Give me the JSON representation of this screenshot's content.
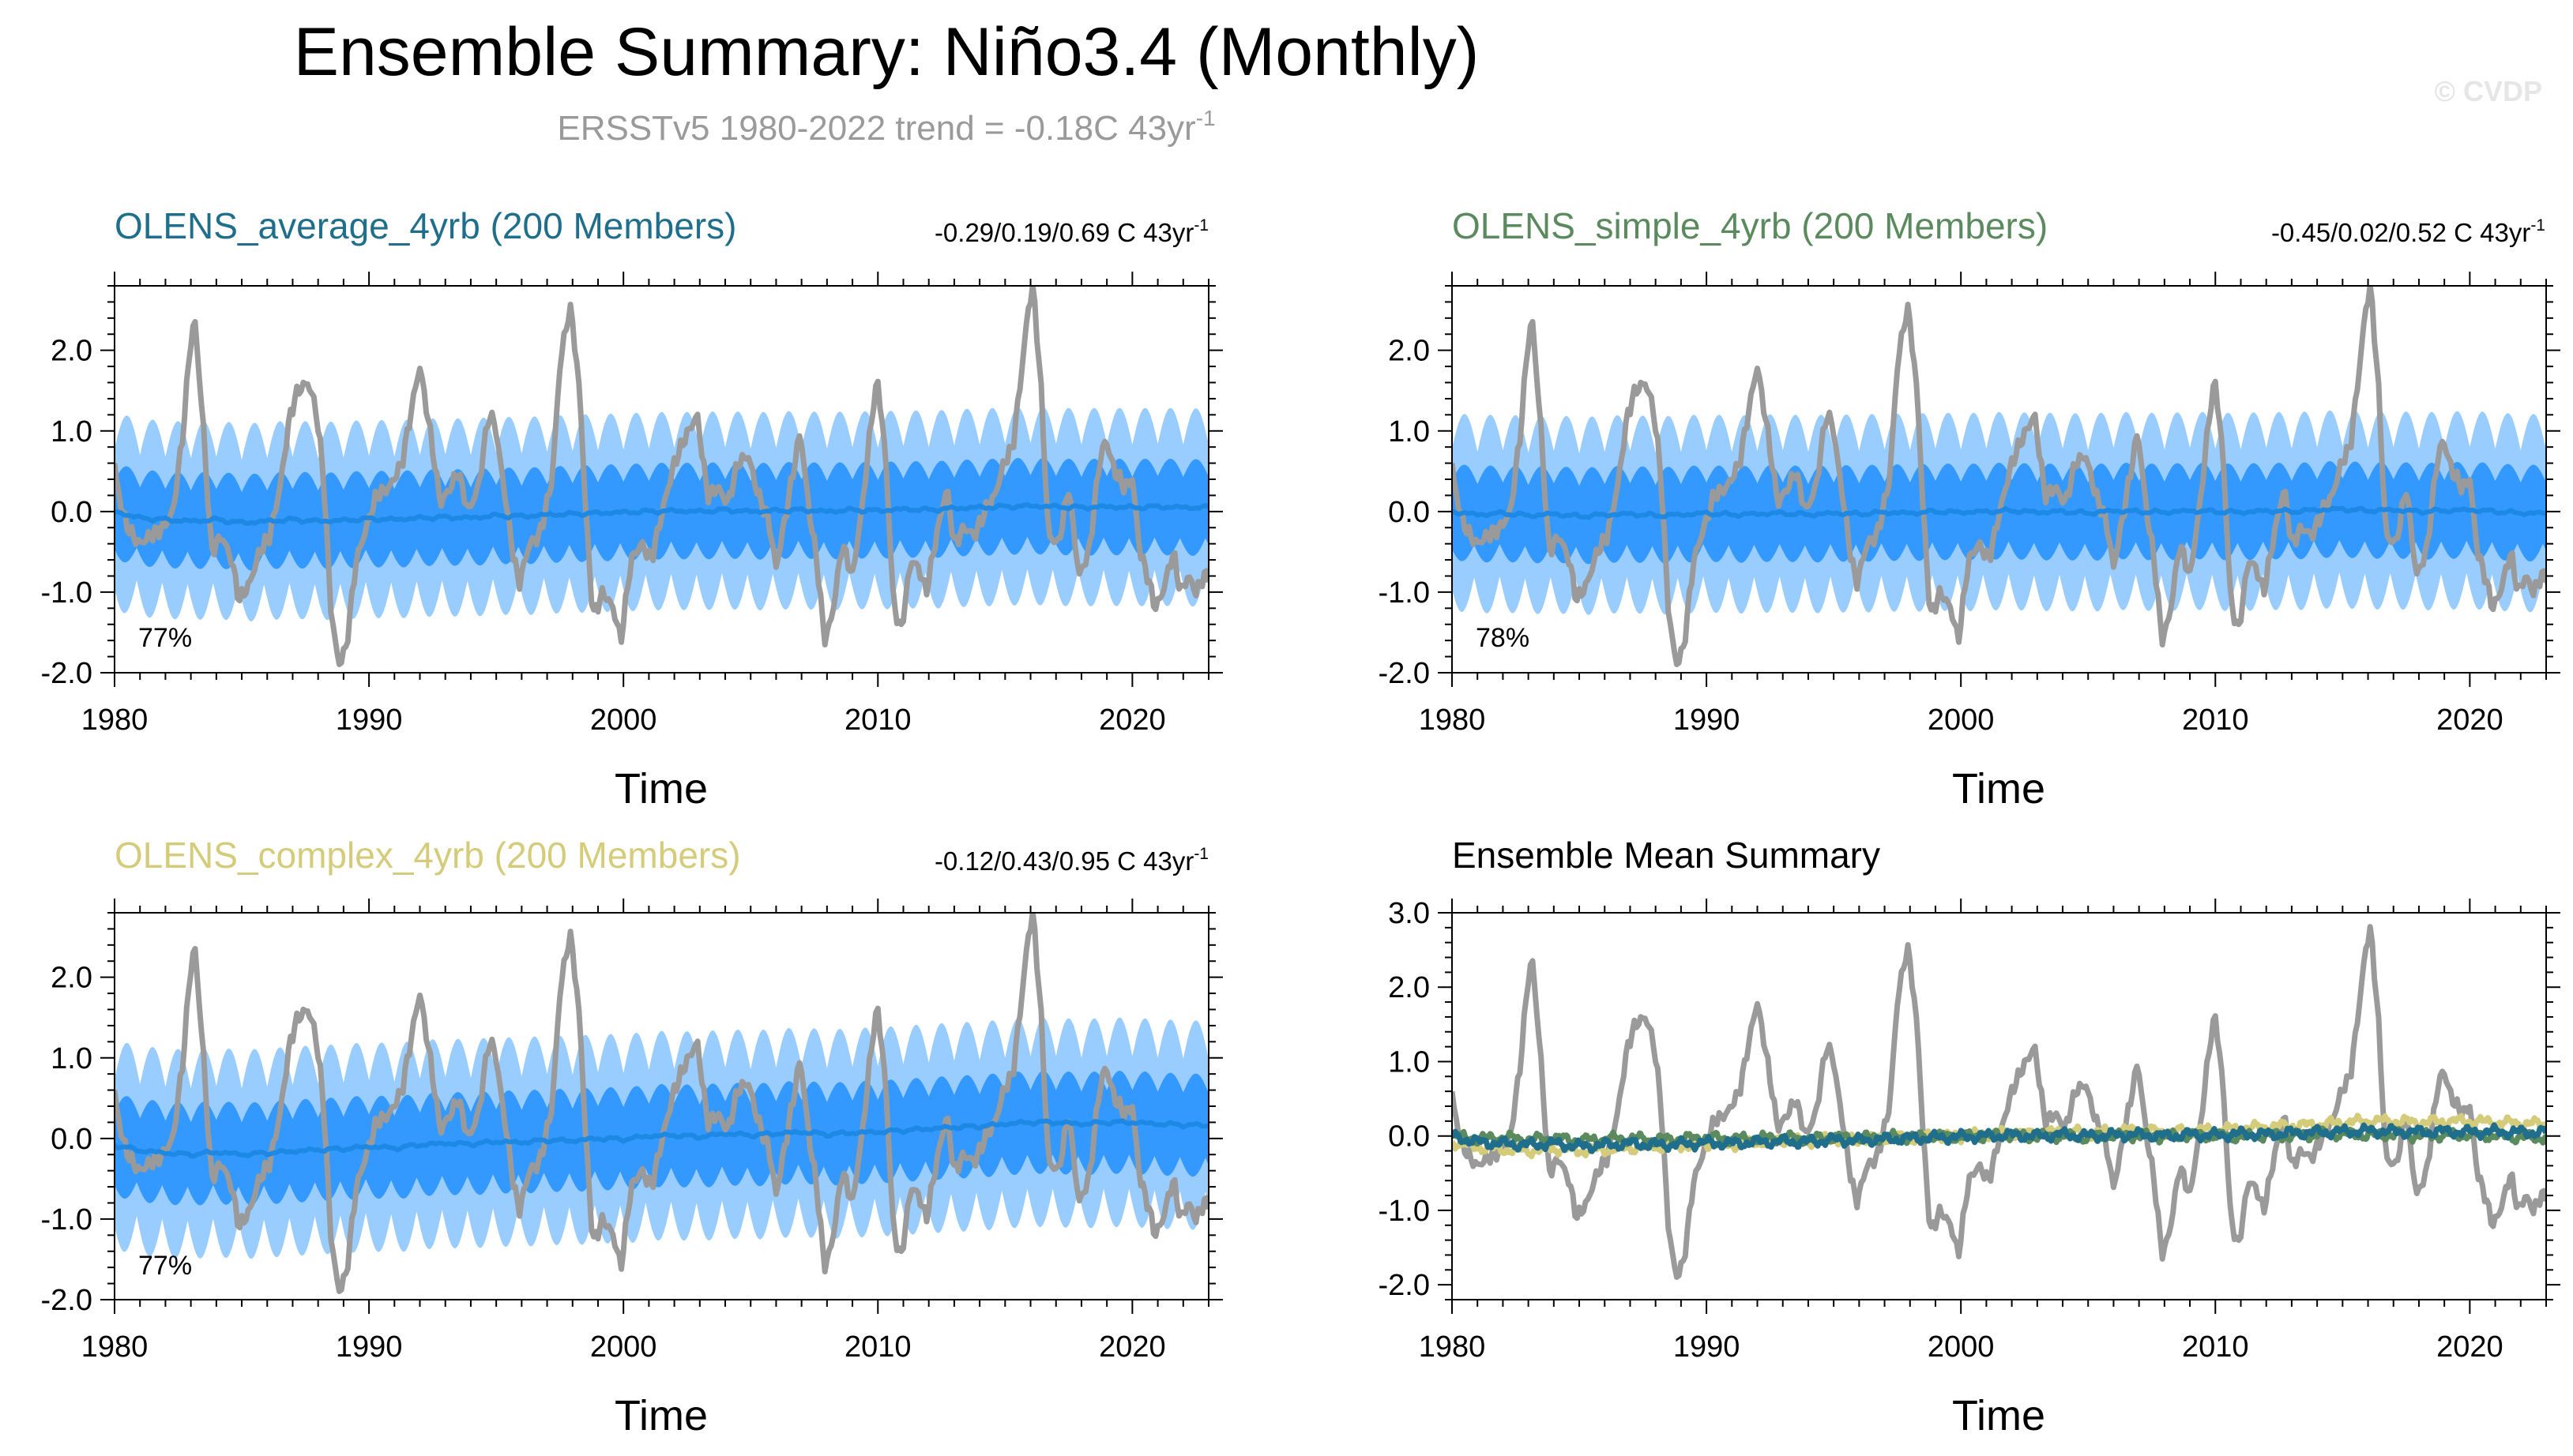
{
  "figure": {
    "title": "Ensemble Summary: Niño3.4 (Monthly)",
    "subtitle_prefix": "ERSSTv5 1980-2022 trend = -0.18C 43yr",
    "subtitle_sup": "-1",
    "watermark": "© CVDP"
  },
  "colors": {
    "band_outer": "#99ccff",
    "band_inner": "#3399ff",
    "ens_mean": "#1e88e5",
    "obs": "#9a9a9a",
    "title_average": "#1f6e8c",
    "title_simple": "#5b8a5e",
    "title_complex": "#d4cc7a",
    "subtitle": "#9a9a9a",
    "watermark": "#e6e6e6"
  },
  "chart_data": [
    {
      "type": "line",
      "name": "panel-average",
      "title": "OLENS_average_4yrb (200 Members)",
      "title_color": "#1f6e8c",
      "trend_text": "-0.29/0.19/0.69 C 43yr",
      "trend_sup": "-1",
      "percent": "77%",
      "xlabel": "Time",
      "ylabel": "",
      "xlim": [
        1980,
        2023
      ],
      "ylim": [
        -2.0,
        2.8
      ],
      "xticks": [
        1980,
        1990,
        2000,
        2010,
        2020
      ],
      "yticks": [
        -2.0,
        -1.0,
        0.0,
        1.0,
        2.0
      ],
      "ytick_labels": [
        "-2.0",
        "-1.0",
        "0.0",
        "1.0",
        "2.0"
      ],
      "series": [
        {
          "name": "ensemble spread 10-90%",
          "kind": "band",
          "trend": 0.0,
          "inner_half": 0.38,
          "inner_amp": 0.22,
          "outer_half": 0.78,
          "outer_amp": 0.45
        },
        {
          "name": "ensemble mean",
          "kind": "line",
          "x": [
            1980,
            1981,
            1982,
            1983,
            1984,
            1985,
            1986,
            1987,
            1988,
            1989,
            1990,
            1991,
            1992,
            1993,
            1994,
            1995,
            1996,
            1997,
            1998,
            1999,
            2000,
            2001,
            2002,
            2003,
            2004,
            2005,
            2006,
            2007,
            2008,
            2009,
            2010,
            2011,
            2012,
            2013,
            2014,
            2015,
            2016,
            2017,
            2018,
            2019,
            2020,
            2021,
            2022,
            2023
          ],
          "values": [
            0.0,
            -0.08,
            -0.1,
            -0.12,
            -0.1,
            -0.14,
            -0.12,
            -0.1,
            -0.12,
            -0.11,
            -0.09,
            -0.1,
            -0.08,
            -0.07,
            -0.08,
            -0.05,
            -0.06,
            -0.04,
            -0.03,
            -0.02,
            -0.01,
            0.0,
            0.01,
            0.0,
            0.02,
            0.0,
            0.01,
            0.02,
            0.0,
            0.02,
            0.01,
            0.03,
            0.02,
            0.04,
            0.05,
            0.06,
            0.07,
            0.06,
            0.05,
            0.06,
            0.05,
            0.06,
            0.05,
            0.05
          ]
        },
        {
          "name": "ERSSTv5 observed",
          "kind": "obs"
        }
      ]
    },
    {
      "type": "line",
      "name": "panel-simple",
      "title": "OLENS_simple_4yrb (200 Members)",
      "title_color": "#5b8a5e",
      "trend_text": "-0.45/0.02/0.52 C 43yr",
      "trend_sup": "-1",
      "percent": "78%",
      "xlabel": "Time",
      "ylabel": "",
      "xlim": [
        1980,
        2023
      ],
      "ylim": [
        -2.0,
        2.8
      ],
      "xticks": [
        1980,
        1990,
        2000,
        2010,
        2020
      ],
      "yticks": [
        -2.0,
        -1.0,
        0.0,
        1.0,
        2.0
      ],
      "ytick_labels": [
        "-2.0",
        "-1.0",
        "0.0",
        "1.0",
        "2.0"
      ],
      "series": [
        {
          "name": "ensemble spread 10-90%",
          "kind": "band",
          "trend": 0.0,
          "inner_half": 0.38,
          "inner_amp": 0.22,
          "outer_half": 0.78,
          "outer_amp": 0.45
        },
        {
          "name": "ensemble mean",
          "kind": "line",
          "x": [
            1980,
            1981,
            1982,
            1983,
            1984,
            1985,
            1986,
            1987,
            1988,
            1989,
            1990,
            1991,
            1992,
            1993,
            1994,
            1995,
            1996,
            1997,
            1998,
            1999,
            2000,
            2001,
            2002,
            2003,
            2004,
            2005,
            2006,
            2007,
            2008,
            2009,
            2010,
            2011,
            2012,
            2013,
            2014,
            2015,
            2016,
            2017,
            2018,
            2019,
            2020,
            2021,
            2022,
            2023
          ],
          "values": [
            0.0,
            -0.04,
            -0.02,
            -0.05,
            -0.03,
            -0.06,
            -0.04,
            -0.03,
            -0.05,
            -0.04,
            -0.02,
            -0.04,
            -0.03,
            -0.02,
            -0.04,
            -0.02,
            -0.03,
            -0.01,
            -0.02,
            0.0,
            -0.01,
            0.0,
            0.01,
            -0.01,
            0.0,
            -0.02,
            0.01,
            0.0,
            -0.01,
            0.01,
            0.0,
            -0.01,
            0.01,
            0.0,
            0.02,
            0.03,
            0.01,
            0.02,
            0.0,
            0.01,
            0.02,
            0.0,
            -0.02,
            -0.02
          ]
        },
        {
          "name": "ERSSTv5 observed",
          "kind": "obs"
        }
      ]
    },
    {
      "type": "line",
      "name": "panel-complex",
      "title": "OLENS_complex_4yrb (200 Members)",
      "title_color": "#d4cc7a",
      "trend_text": "-0.12/0.43/0.95 C 43yr",
      "trend_sup": "-1",
      "percent": "77%",
      "xlabel": "Time",
      "ylabel": "",
      "xlim": [
        1980,
        2023
      ],
      "ylim": [
        -2.0,
        2.8
      ],
      "xticks": [
        1980,
        1990,
        2000,
        2010,
        2020
      ],
      "yticks": [
        -2.0,
        -1.0,
        0.0,
        1.0,
        2.0
      ],
      "ytick_labels": [
        "-2.0",
        "-1.0",
        "0.0",
        "1.0",
        "2.0"
      ],
      "series": [
        {
          "name": "ensemble spread 10-90%",
          "kind": "band",
          "trend": 0.0,
          "inner_half": 0.4,
          "inner_amp": 0.24,
          "outer_half": 0.82,
          "outer_amp": 0.48
        },
        {
          "name": "ensemble mean",
          "kind": "line",
          "x": [
            1980,
            1981,
            1982,
            1983,
            1984,
            1985,
            1986,
            1987,
            1988,
            1989,
            1990,
            1991,
            1992,
            1993,
            1994,
            1995,
            1996,
            1997,
            1998,
            1999,
            2000,
            2001,
            2002,
            2003,
            2004,
            2005,
            2006,
            2007,
            2008,
            2009,
            2010,
            2011,
            2012,
            2013,
            2014,
            2015,
            2016,
            2017,
            2018,
            2019,
            2020,
            2021,
            2022,
            2023
          ],
          "values": [
            -0.08,
            -0.15,
            -0.18,
            -0.2,
            -0.17,
            -0.2,
            -0.18,
            -0.16,
            -0.14,
            -0.13,
            -0.1,
            -0.12,
            -0.08,
            -0.06,
            -0.07,
            -0.04,
            -0.05,
            -0.02,
            -0.03,
            0.0,
            -0.01,
            0.03,
            0.04,
            0.02,
            0.06,
            0.04,
            0.06,
            0.08,
            0.05,
            0.07,
            0.08,
            0.1,
            0.12,
            0.14,
            0.15,
            0.18,
            0.2,
            0.2,
            0.18,
            0.2,
            0.2,
            0.18,
            0.17,
            0.16
          ]
        },
        {
          "name": "ERSSTv5 observed",
          "kind": "obs"
        }
      ]
    },
    {
      "type": "line",
      "name": "panel-ensemble-mean-summary",
      "title": "Ensemble Mean Summary",
      "title_color": "#000000",
      "xlabel": "Time",
      "ylabel": "",
      "xlim": [
        1980,
        2023
      ],
      "ylim": [
        -2.2,
        3.0
      ],
      "xticks": [
        1980,
        1990,
        2000,
        2010,
        2020
      ],
      "yticks": [
        -2.0,
        -1.0,
        0.0,
        1.0,
        2.0,
        3.0
      ],
      "ytick_labels": [
        "-2.0",
        "-1.0",
        "0.0",
        "1.0",
        "2.0",
        "3.0"
      ],
      "series": [
        {
          "name": "ERSSTv5 observed",
          "kind": "obs"
        },
        {
          "name": "OLENS_complex_4yrb ensemble mean",
          "kind": "line",
          "color": "#d4cc7a",
          "x": [
            1980,
            1981,
            1982,
            1983,
            1984,
            1985,
            1986,
            1987,
            1988,
            1989,
            1990,
            1991,
            1992,
            1993,
            1994,
            1995,
            1996,
            1997,
            1998,
            1999,
            2000,
            2001,
            2002,
            2003,
            2004,
            2005,
            2006,
            2007,
            2008,
            2009,
            2010,
            2011,
            2012,
            2013,
            2014,
            2015,
            2016,
            2017,
            2018,
            2019,
            2020,
            2021,
            2022,
            2023
          ],
          "values": [
            -0.08,
            -0.15,
            -0.18,
            -0.2,
            -0.17,
            -0.2,
            -0.18,
            -0.16,
            -0.14,
            -0.13,
            -0.1,
            -0.12,
            -0.08,
            -0.06,
            -0.07,
            -0.04,
            -0.05,
            -0.02,
            -0.03,
            0.0,
            -0.01,
            0.03,
            0.04,
            0.02,
            0.06,
            0.04,
            0.06,
            0.08,
            0.05,
            0.07,
            0.08,
            0.1,
            0.12,
            0.14,
            0.15,
            0.18,
            0.2,
            0.2,
            0.18,
            0.2,
            0.2,
            0.18,
            0.17,
            0.16
          ]
        },
        {
          "name": "OLENS_simple_4yrb ensemble mean",
          "kind": "line",
          "color": "#5b8a5e",
          "x": [
            1980,
            1981,
            1982,
            1983,
            1984,
            1985,
            1986,
            1987,
            1988,
            1989,
            1990,
            1991,
            1992,
            1993,
            1994,
            1995,
            1996,
            1997,
            1998,
            1999,
            2000,
            2001,
            2002,
            2003,
            2004,
            2005,
            2006,
            2007,
            2008,
            2009,
            2010,
            2011,
            2012,
            2013,
            2014,
            2015,
            2016,
            2017,
            2018,
            2019,
            2020,
            2021,
            2022,
            2023
          ],
          "values": [
            0.0,
            -0.04,
            -0.02,
            -0.05,
            -0.03,
            -0.06,
            -0.04,
            -0.03,
            -0.05,
            -0.04,
            -0.02,
            -0.04,
            -0.03,
            -0.02,
            -0.04,
            -0.02,
            -0.03,
            -0.01,
            -0.02,
            0.0,
            -0.01,
            0.0,
            0.01,
            -0.01,
            0.0,
            -0.02,
            0.01,
            0.0,
            -0.01,
            0.01,
            0.0,
            -0.01,
            0.01,
            0.0,
            0.02,
            0.03,
            0.01,
            0.02,
            0.0,
            0.01,
            0.02,
            0.0,
            -0.02,
            -0.02
          ]
        },
        {
          "name": "OLENS_average_4yrb ensemble mean",
          "kind": "line",
          "color": "#1f6e8c",
          "x": [
            1980,
            1981,
            1982,
            1983,
            1984,
            1985,
            1986,
            1987,
            1988,
            1989,
            1990,
            1991,
            1992,
            1993,
            1994,
            1995,
            1996,
            1997,
            1998,
            1999,
            2000,
            2001,
            2002,
            2003,
            2004,
            2005,
            2006,
            2007,
            2008,
            2009,
            2010,
            2011,
            2012,
            2013,
            2014,
            2015,
            2016,
            2017,
            2018,
            2019,
            2020,
            2021,
            2022,
            2023
          ],
          "values": [
            0.0,
            -0.08,
            -0.1,
            -0.12,
            -0.1,
            -0.14,
            -0.12,
            -0.1,
            -0.12,
            -0.11,
            -0.09,
            -0.1,
            -0.08,
            -0.07,
            -0.08,
            -0.05,
            -0.06,
            -0.04,
            -0.03,
            -0.02,
            -0.01,
            0.0,
            0.01,
            0.0,
            0.02,
            0.0,
            0.01,
            0.02,
            0.0,
            0.02,
            0.01,
            0.03,
            0.02,
            0.04,
            0.05,
            0.06,
            0.07,
            0.06,
            0.05,
            0.06,
            0.05,
            0.06,
            0.05,
            0.05
          ]
        }
      ]
    }
  ],
  "obs_series": {
    "name": "ERSSTv5 Niño3.4 monthly anomaly",
    "x": [
      1980.0,
      1980.1,
      1980.4,
      1980.7,
      1981.0,
      1981.4,
      1981.9,
      1982.3,
      1982.7,
      1982.95,
      1983.15,
      1983.5,
      1983.8,
      1984.2,
      1984.6,
      1984.9,
      1985.3,
      1985.7,
      1986.1,
      1986.5,
      1986.9,
      1987.2,
      1987.6,
      1987.9,
      1988.2,
      1988.5,
      1988.8,
      1989.1,
      1989.5,
      1989.9,
      1990.3,
      1990.8,
      1991.3,
      1991.8,
      1992.0,
      1992.4,
      1992.8,
      1993.2,
      1993.5,
      1993.9,
      1994.3,
      1994.7,
      1994.95,
      1995.3,
      1995.7,
      1995.9,
      1996.3,
      1996.7,
      1997.2,
      1997.5,
      1997.8,
      1997.95,
      1998.3,
      1998.5,
      1998.8,
      1999.2,
      1999.6,
      1999.9,
      2000.3,
      2000.7,
      2001.1,
      2001.6,
      2002.0,
      2002.4,
      2002.9,
      2003.3,
      2003.7,
      2004.1,
      2004.5,
      2004.9,
      2005.3,
      2005.7,
      2006.0,
      2006.4,
      2006.95,
      2007.3,
      2007.6,
      2007.9,
      2008.2,
      2008.6,
      2009.0,
      2009.4,
      2009.8,
      2010.0,
      2010.3,
      2010.6,
      2010.9,
      2011.3,
      2011.6,
      2011.9,
      2012.3,
      2012.7,
      2013.0,
      2013.4,
      2013.8,
      2014.2,
      2014.6,
      2014.95,
      2015.3,
      2015.6,
      2015.9,
      2016.1,
      2016.4,
      2016.7,
      2017.1,
      2017.5,
      2017.9,
      2018.3,
      2018.7,
      2018.95,
      2019.3,
      2019.7,
      2020.0,
      2020.3,
      2020.6,
      2020.9,
      2021.2,
      2021.6,
      2021.9,
      2022.2,
      2022.5,
      2022.8,
      2022.95
    ],
    "values": [
      0.6,
      0.3,
      -0.1,
      -0.3,
      -0.4,
      -0.3,
      -0.2,
      0.0,
      1.0,
      2.0,
      2.4,
      1.0,
      -0.5,
      -0.3,
      -0.6,
      -1.1,
      -0.9,
      -0.5,
      -0.3,
      0.3,
      1.2,
      1.5,
      1.6,
      1.3,
      0.5,
      -1.2,
      -1.9,
      -1.7,
      -0.6,
      -0.2,
      0.2,
      0.3,
      0.6,
      1.5,
      1.8,
      1.0,
      0.1,
      0.3,
      0.5,
      0.0,
      0.3,
      1.2,
      1.1,
      0.3,
      -0.6,
      -0.9,
      -0.4,
      -0.3,
      0.4,
      1.8,
      2.4,
      2.5,
      1.4,
      0.1,
      -1.3,
      -1.0,
      -1.2,
      -1.6,
      -0.6,
      -0.4,
      -0.6,
      0.1,
      0.6,
      0.9,
      1.2,
      0.2,
      0.3,
      0.1,
      0.6,
      0.7,
      0.2,
      -0.1,
      -0.7,
      0.0,
      1.0,
      0.0,
      -0.6,
      -1.6,
      -1.3,
      -0.4,
      -0.8,
      0.1,
      1.3,
      1.6,
      0.7,
      -1.1,
      -1.5,
      -0.6,
      -0.7,
      -1.0,
      -0.3,
      0.3,
      -0.4,
      -0.2,
      -0.3,
      0.0,
      0.2,
      0.6,
      0.8,
      1.6,
      2.5,
      2.8,
      1.6,
      -0.3,
      -0.4,
      0.3,
      -0.8,
      -0.5,
      0.6,
      0.9,
      0.5,
      0.3,
      0.4,
      -0.5,
      -0.8,
      -1.2,
      -1.0,
      -0.5,
      -1.0,
      -0.8,
      -1.0,
      -0.8,
      -0.8
    ]
  }
}
